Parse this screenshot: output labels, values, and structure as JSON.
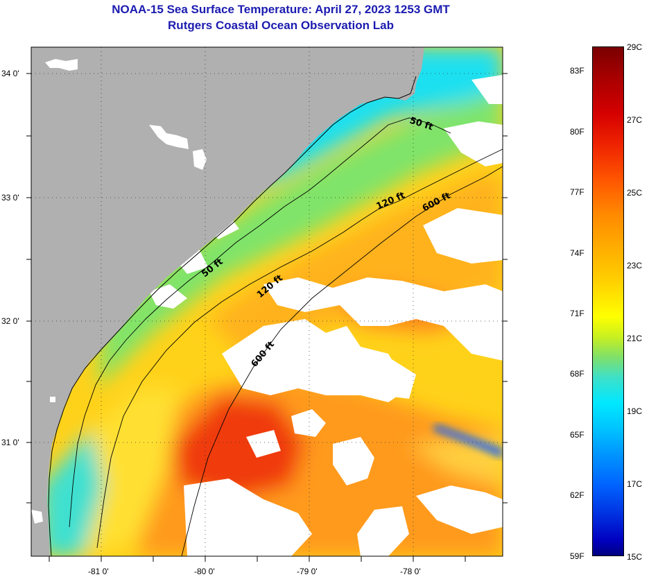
{
  "header": {
    "title": "NOAA-15 Sea Surface Temperature:  April 27, 2023 1253 GMT",
    "subtitle": "Rutgers Coastal Ocean Observation Lab"
  },
  "map": {
    "latitude_labels": [
      "34 0'",
      "33 0'",
      "32 0'",
      "31 0'"
    ],
    "longitude_labels": [
      "-81 0'",
      "-80 0'",
      "-79 0'",
      "-78 0'"
    ],
    "contour_labels": {
      "north_50": "50 ft",
      "north_120": "120 ft",
      "north_600": "600 ft",
      "south_50": "50 ft",
      "south_120": "120 ft",
      "south_600": "600 ft"
    },
    "colors": {
      "land": "#b0b0b0",
      "cloud": "#ffffff",
      "cool_water": "#22e6f0",
      "mid_water": "#ffe81a",
      "warm_water": "#ff9a1a",
      "hot_water": "#f03a10"
    }
  },
  "colorbar": {
    "fahrenheit_labels": [
      "83F",
      "80F",
      "77F",
      "74F",
      "71F",
      "68F",
      "65F",
      "62F",
      "59F"
    ],
    "celsius_labels": [
      "29C",
      "27C",
      "25C",
      "23C",
      "21C",
      "19C",
      "17C",
      "15C"
    ],
    "range_c": [
      15,
      29
    ]
  }
}
